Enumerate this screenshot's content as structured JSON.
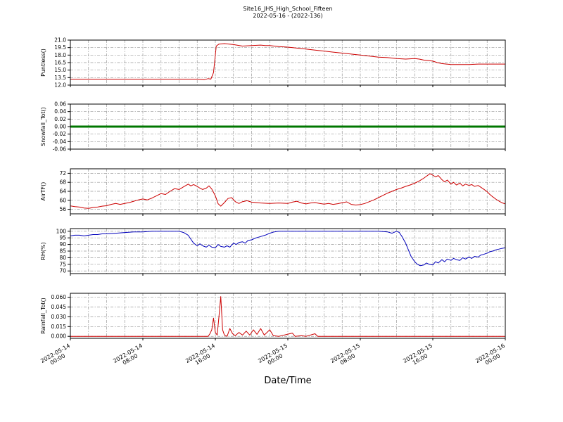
{
  "figure": {
    "title_line1": "Site16_JHS_High_School_Fifteen",
    "title_line2": "2022-05-16 - (2022-136)",
    "xlabel": "Date/Time",
    "background": "#ffffff",
    "grid_color": "#999999",
    "axis_color": "#000000"
  },
  "x_axis": {
    "range": [
      0,
      48
    ],
    "major_ticks": [
      0,
      8,
      16,
      24,
      32,
      40,
      48
    ],
    "tick_labels": [
      [
        "2022-05-14",
        "00:00"
      ],
      [
        "2022-05-14",
        "08:00"
      ],
      [
        "2022-05-14",
        "16:00"
      ],
      [
        "2022-05-15",
        "00:00"
      ],
      [
        "2022-05-15",
        "08:00"
      ],
      [
        "2022-05-15",
        "16:00"
      ],
      [
        "2022-05-16",
        "00:00"
      ]
    ],
    "minor_grid_step": 2
  },
  "chart_data": [
    {
      "type": "line",
      "ylabel": "Puntless()",
      "color": "#cc0000",
      "linewidth": 1,
      "ylim": [
        12,
        21
      ],
      "yticks": [
        12.0,
        13.5,
        15.0,
        16.5,
        18.0,
        19.5,
        21.0
      ],
      "ytick_decimals": 1,
      "points": [
        [
          0,
          13.2
        ],
        [
          2,
          13.2
        ],
        [
          4,
          13.2
        ],
        [
          6,
          13.2
        ],
        [
          8,
          13.2
        ],
        [
          10,
          13.2
        ],
        [
          12,
          13.2
        ],
        [
          13,
          13.2
        ],
        [
          14,
          13.2
        ],
        [
          14.8,
          13.1
        ],
        [
          15.2,
          13.3
        ],
        [
          15.5,
          13.2
        ],
        [
          15.8,
          14.5
        ],
        [
          16.1,
          19.8
        ],
        [
          16.4,
          20.2
        ],
        [
          17,
          20.3
        ],
        [
          18,
          20.1
        ],
        [
          19,
          19.8
        ],
        [
          20,
          19.9
        ],
        [
          21,
          20.0
        ],
        [
          21.5,
          19.9
        ],
        [
          22,
          19.9
        ],
        [
          23,
          19.7
        ],
        [
          24,
          19.6
        ],
        [
          25,
          19.4
        ],
        [
          26,
          19.2
        ],
        [
          27,
          19.0
        ],
        [
          28,
          18.8
        ],
        [
          29,
          18.6
        ],
        [
          30,
          18.4
        ],
        [
          31,
          18.2
        ],
        [
          32,
          18.0
        ],
        [
          33,
          17.8
        ],
        [
          34,
          17.6
        ],
        [
          35,
          17.5
        ],
        [
          36,
          17.3
        ],
        [
          37,
          17.2
        ],
        [
          38,
          17.3
        ],
        [
          38.5,
          17.2
        ],
        [
          39,
          17.0
        ],
        [
          40,
          16.8
        ],
        [
          40.5,
          16.5
        ],
        [
          41,
          16.3
        ],
        [
          41.5,
          16.2
        ],
        [
          42,
          16.1
        ],
        [
          43,
          16.1
        ],
        [
          44,
          16.1
        ],
        [
          45,
          16.2
        ],
        [
          46,
          16.2
        ],
        [
          47,
          16.2
        ],
        [
          48,
          16.2
        ]
      ]
    },
    {
      "type": "line",
      "ylabel": "Snowfall_Tot()",
      "color": "#007700",
      "linewidth": 3,
      "ylim": [
        -0.06,
        0.06
      ],
      "yticks": [
        -0.06,
        -0.04,
        -0.02,
        0.0,
        0.02,
        0.04,
        0.06
      ],
      "ytick_decimals": 2,
      "points": [
        [
          0,
          0
        ],
        [
          48,
          0
        ]
      ]
    },
    {
      "type": "line",
      "ylabel": "AirTF()",
      "color": "#cc0000",
      "linewidth": 1,
      "ylim": [
        54,
        74
      ],
      "yticks": [
        56,
        60,
        64,
        68,
        72
      ],
      "ytick_decimals": 0,
      "points": [
        [
          0,
          57.5
        ],
        [
          0.5,
          57.2
        ],
        [
          1,
          57.0
        ],
        [
          1.5,
          56.6
        ],
        [
          2,
          56.4
        ],
        [
          2.5,
          56.8
        ],
        [
          3,
          57.0
        ],
        [
          3.5,
          57.4
        ],
        [
          4,
          57.6
        ],
        [
          4.5,
          58.2
        ],
        [
          5,
          58.6
        ],
        [
          5.5,
          58.2
        ],
        [
          6,
          58.6
        ],
        [
          6.5,
          59.0
        ],
        [
          7,
          59.6
        ],
        [
          7.5,
          60.2
        ],
        [
          8,
          60.6
        ],
        [
          8.5,
          60.2
        ],
        [
          9,
          61.0
        ],
        [
          9.5,
          62.0
        ],
        [
          10,
          63.0
        ],
        [
          10.5,
          62.6
        ],
        [
          11,
          64.0
        ],
        [
          11.5,
          65.2
        ],
        [
          12,
          64.8
        ],
        [
          12.5,
          66.0
        ],
        [
          13,
          67.2
        ],
        [
          13.3,
          66.4
        ],
        [
          13.6,
          67.0
        ],
        [
          14,
          66.2
        ],
        [
          14.3,
          65.4
        ],
        [
          14.6,
          64.8
        ],
        [
          15,
          65.4
        ],
        [
          15.3,
          66.4
        ],
        [
          15.6,
          65.0
        ],
        [
          16,
          62.0
        ],
        [
          16.3,
          58.5
        ],
        [
          16.6,
          57.4
        ],
        [
          17,
          59.0
        ],
        [
          17.4,
          60.8
        ],
        [
          17.8,
          61.2
        ],
        [
          18.2,
          59.4
        ],
        [
          18.6,
          58.6
        ],
        [
          19,
          59.4
        ],
        [
          19.5,
          59.8
        ],
        [
          20,
          59.2
        ],
        [
          21,
          58.8
        ],
        [
          22,
          58.6
        ],
        [
          23,
          58.8
        ],
        [
          24,
          58.6
        ],
        [
          24.5,
          59.2
        ],
        [
          25,
          59.6
        ],
        [
          25.5,
          58.8
        ],
        [
          26,
          58.4
        ],
        [
          26.5,
          58.8
        ],
        [
          27,
          59.0
        ],
        [
          27.5,
          58.6
        ],
        [
          28,
          58.3
        ],
        [
          28.5,
          58.6
        ],
        [
          29,
          58.2
        ],
        [
          29.5,
          58.5
        ],
        [
          30,
          58.9
        ],
        [
          30.5,
          59.3
        ],
        [
          31,
          58.2
        ],
        [
          31.5,
          57.9
        ],
        [
          32,
          58.1
        ],
        [
          32.5,
          58.6
        ],
        [
          33,
          59.4
        ],
        [
          33.5,
          60.2
        ],
        [
          34,
          61.2
        ],
        [
          34.5,
          62.2
        ],
        [
          35,
          63.2
        ],
        [
          35.5,
          64.0
        ],
        [
          36,
          64.8
        ],
        [
          36.5,
          65.4
        ],
        [
          37,
          66.2
        ],
        [
          37.5,
          66.8
        ],
        [
          38,
          67.6
        ],
        [
          38.5,
          68.6
        ],
        [
          39,
          69.8
        ],
        [
          39.4,
          71.0
        ],
        [
          39.7,
          71.8
        ],
        [
          40,
          71.2
        ],
        [
          40.3,
          70.4
        ],
        [
          40.6,
          71.0
        ],
        [
          41,
          69.2
        ],
        [
          41.3,
          68.2
        ],
        [
          41.6,
          69.0
        ],
        [
          42,
          67.2
        ],
        [
          42.3,
          68.0
        ],
        [
          42.6,
          66.8
        ],
        [
          43,
          67.6
        ],
        [
          43.3,
          66.4
        ],
        [
          43.6,
          67.2
        ],
        [
          44,
          66.6
        ],
        [
          44.3,
          67.0
        ],
        [
          44.6,
          66.2
        ],
        [
          45,
          66.6
        ],
        [
          45.3,
          65.8
        ],
        [
          45.6,
          65.0
        ],
        [
          46,
          63.8
        ],
        [
          46.3,
          62.6
        ],
        [
          46.6,
          61.6
        ],
        [
          47,
          60.4
        ],
        [
          47.4,
          59.4
        ],
        [
          47.7,
          58.8
        ],
        [
          48,
          58.4
        ]
      ]
    },
    {
      "type": "line",
      "ylabel": "RH(%)",
      "color": "#0000bb",
      "linewidth": 1,
      "ylim": [
        68,
        102
      ],
      "yticks": [
        70,
        75,
        80,
        85,
        90,
        95,
        100
      ],
      "ytick_decimals": 0,
      "points": [
        [
          0,
          96.5
        ],
        [
          0.5,
          97
        ],
        [
          1,
          97
        ],
        [
          1.5,
          96.5
        ],
        [
          2,
          97
        ],
        [
          2.5,
          97.5
        ],
        [
          3,
          97.5
        ],
        [
          3.5,
          98
        ],
        [
          4,
          98
        ],
        [
          5,
          98.5
        ],
        [
          6,
          99
        ],
        [
          7,
          99.5
        ],
        [
          8,
          99.5
        ],
        [
          9,
          100
        ],
        [
          10,
          100
        ],
        [
          11,
          100
        ],
        [
          12,
          100
        ],
        [
          12.5,
          99
        ],
        [
          13,
          97
        ],
        [
          13.3,
          94
        ],
        [
          13.6,
          91
        ],
        [
          14,
          89
        ],
        [
          14.3,
          90.5
        ],
        [
          14.6,
          89
        ],
        [
          15,
          88
        ],
        [
          15.3,
          89.5
        ],
        [
          15.6,
          88
        ],
        [
          16,
          87.5
        ],
        [
          16.3,
          90
        ],
        [
          16.6,
          88.5
        ],
        [
          17,
          88
        ],
        [
          17.3,
          89
        ],
        [
          17.6,
          88
        ],
        [
          18,
          91
        ],
        [
          18.3,
          90
        ],
        [
          18.6,
          91.5
        ],
        [
          19,
          92
        ],
        [
          19.3,
          91
        ],
        [
          19.6,
          93
        ],
        [
          20,
          93.5
        ],
        [
          20.5,
          95
        ],
        [
          21,
          96
        ],
        [
          21.5,
          97
        ],
        [
          22,
          98.5
        ],
        [
          22.5,
          99.5
        ],
        [
          23,
          100
        ],
        [
          24,
          100
        ],
        [
          26,
          100
        ],
        [
          28,
          100
        ],
        [
          30,
          100
        ],
        [
          32,
          100
        ],
        [
          34,
          100
        ],
        [
          35,
          99.5
        ],
        [
          35.5,
          98.5
        ],
        [
          36,
          100
        ],
        [
          36.3,
          99
        ],
        [
          36.6,
          96
        ],
        [
          37,
          91
        ],
        [
          37.3,
          86
        ],
        [
          37.6,
          81
        ],
        [
          38,
          77
        ],
        [
          38.3,
          75
        ],
        [
          38.6,
          74
        ],
        [
          39,
          74.5
        ],
        [
          39.3,
          76
        ],
        [
          39.6,
          75
        ],
        [
          40,
          74.5
        ],
        [
          40.3,
          77
        ],
        [
          40.6,
          76
        ],
        [
          41,
          78.5
        ],
        [
          41.3,
          77
        ],
        [
          41.6,
          79
        ],
        [
          42,
          78
        ],
        [
          42.3,
          79.5
        ],
        [
          42.6,
          78.5
        ],
        [
          43,
          78
        ],
        [
          43.3,
          80
        ],
        [
          43.6,
          79
        ],
        [
          44,
          80.5
        ],
        [
          44.3,
          79.5
        ],
        [
          44.6,
          81
        ],
        [
          45,
          80.5
        ],
        [
          45.3,
          82
        ],
        [
          45.6,
          82.5
        ],
        [
          46,
          83.5
        ],
        [
          46.3,
          84.5
        ],
        [
          46.6,
          85
        ],
        [
          47,
          86
        ],
        [
          47.3,
          86.5
        ],
        [
          47.6,
          87
        ],
        [
          48,
          87.5
        ]
      ]
    },
    {
      "type": "line",
      "ylabel": "Rainfall_Tot()",
      "color": "#cc0000",
      "linewidth": 1,
      "ylim": [
        -0.003,
        0.066
      ],
      "yticks": [
        0.0,
        0.015,
        0.03,
        0.045,
        0.06
      ],
      "ytick_decimals": 3,
      "points": [
        [
          0,
          0
        ],
        [
          14,
          0
        ],
        [
          15.2,
          0
        ],
        [
          15.4,
          0.004
        ],
        [
          15.6,
          0.01
        ],
        [
          15.8,
          0.028
        ],
        [
          16.0,
          0.006
        ],
        [
          16.2,
          0.002
        ],
        [
          16.4,
          0.03
        ],
        [
          16.6,
          0.061
        ],
        [
          16.8,
          0.01
        ],
        [
          17,
          0.002
        ],
        [
          17.3,
          0
        ],
        [
          17.6,
          0.012
        ],
        [
          17.9,
          0.004
        ],
        [
          18.2,
          0.001
        ],
        [
          18.6,
          0.006
        ],
        [
          19,
          0.002
        ],
        [
          19.4,
          0.008
        ],
        [
          19.8,
          0.002
        ],
        [
          20.2,
          0.01
        ],
        [
          20.6,
          0.003
        ],
        [
          21,
          0.012
        ],
        [
          21.4,
          0.002
        ],
        [
          22,
          0.01
        ],
        [
          22.4,
          0.001
        ],
        [
          23,
          0
        ],
        [
          24.5,
          0.005
        ],
        [
          24.8,
          0
        ],
        [
          25.5,
          0.001
        ],
        [
          26,
          0
        ],
        [
          27,
          0.004
        ],
        [
          27.3,
          0
        ],
        [
          48,
          0
        ]
      ]
    }
  ]
}
